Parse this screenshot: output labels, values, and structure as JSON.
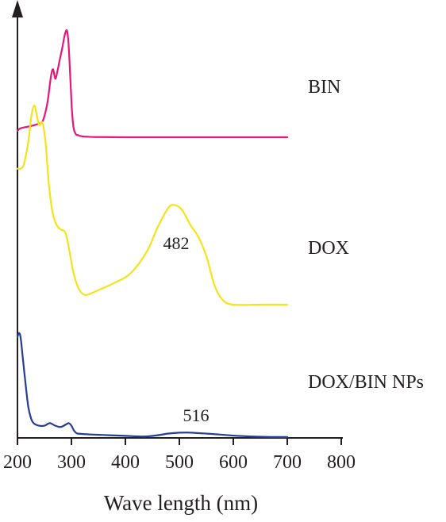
{
  "chart_data": {
    "type": "line",
    "title": "",
    "xlabel": "Wave length (nm)",
    "ylabel": "",
    "xlim": [
      200,
      800
    ],
    "x_ticks": [
      "200",
      "300",
      "400",
      "500",
      "600",
      "700",
      "800"
    ],
    "grid": false,
    "legend": "none",
    "series": [
      {
        "name": "BIN",
        "color": "#e5177b",
        "x": [
          200,
          204,
          210,
          220,
          235,
          245,
          250,
          256,
          262,
          266,
          270,
          274,
          278,
          283,
          288,
          292,
          295,
          298,
          301,
          304,
          308,
          312,
          318,
          330,
          345,
          400,
          500,
          600,
          700
        ],
        "y": [
          0.06,
          0.08,
          0.09,
          0.1,
          0.12,
          0.14,
          0.2,
          0.34,
          0.57,
          0.64,
          0.55,
          0.62,
          0.72,
          0.84,
          0.97,
          1.0,
          0.85,
          0.55,
          0.25,
          0.09,
          0.03,
          0.02,
          0.01,
          0.005,
          0.002,
          0,
          0,
          0,
          0
        ]
      },
      {
        "name": "DOX",
        "color": "#f4e31b",
        "x": [
          200,
          206,
          212,
          220,
          226,
          231,
          235,
          240,
          246,
          252,
          258,
          265,
          272,
          280,
          288,
          293,
          298,
          305,
          315,
          325,
          335,
          350,
          380,
          410,
          440,
          460,
          480,
          492,
          505,
          520,
          535,
          550,
          565,
          580,
          600,
          650,
          700
        ],
        "y": [
          0.56,
          0.56,
          0.58,
          0.67,
          0.78,
          0.82,
          0.79,
          0.74,
          0.75,
          0.67,
          0.5,
          0.38,
          0.33,
          0.31,
          0.3,
          0.26,
          0.2,
          0.12,
          0.06,
          0.04,
          0.045,
          0.06,
          0.09,
          0.13,
          0.22,
          0.32,
          0.4,
          0.41,
          0.39,
          0.33,
          0.28,
          0.2,
          0.08,
          0.02,
          0.0,
          0.0,
          0.0
        ]
      },
      {
        "name": "DOX/BIN NPs",
        "color": "#253d92",
        "x": [
          200,
          203,
          206,
          210,
          215,
          220,
          225,
          230,
          240,
          250,
          260,
          270,
          280,
          290,
          295,
          300,
          305,
          310,
          320,
          340,
          370,
          400,
          430,
          440,
          460,
          480,
          500,
          516,
          530,
          560,
          600,
          640,
          670,
          700
        ],
        "y": [
          0.79,
          0.82,
          0.78,
          0.62,
          0.42,
          0.24,
          0.15,
          0.11,
          0.09,
          0.09,
          0.11,
          0.09,
          0.08,
          0.1,
          0.11,
          0.09,
          0.05,
          0.03,
          0.025,
          0.02,
          0.015,
          0.01,
          0.005,
          0.006,
          0.015,
          0.028,
          0.035,
          0.036,
          0.033,
          0.025,
          0.012,
          0.004,
          0.001,
          0.001
        ]
      }
    ],
    "annotations": [
      {
        "text": "482",
        "x": 482,
        "series": "DOX"
      },
      {
        "text": "516",
        "x": 516,
        "series": "DOX/BIN NPs"
      }
    ]
  }
}
